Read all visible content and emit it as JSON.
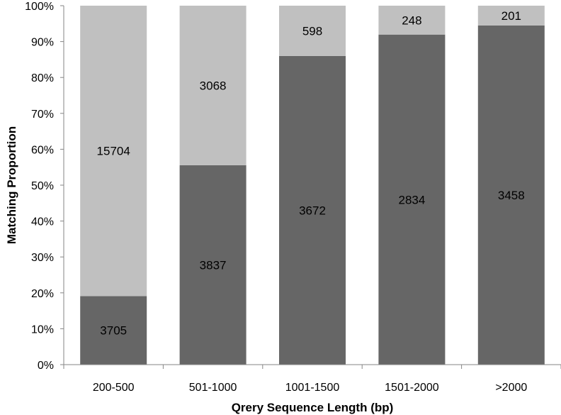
{
  "chart_data": {
    "type": "bar",
    "stacked": true,
    "normalized": true,
    "title": "",
    "xlabel": "Qrery Sequence Length (bp)",
    "ylabel": "Matching Proportion",
    "categories": [
      "200-500",
      "501-1000",
      "1001-1500",
      "1501-2000",
      ">2000"
    ],
    "series": [
      {
        "values": [
          3705,
          3837,
          3672,
          2834,
          3458
        ],
        "color": "#666666"
      },
      {
        "values": [
          15704,
          3068,
          598,
          248,
          201
        ],
        "color": "#c0c0c0"
      }
    ],
    "ylim": [
      0,
      100
    ],
    "yticks": [
      "0%",
      "10%",
      "20%",
      "30%",
      "40%",
      "50%",
      "60%",
      "70%",
      "80%",
      "90%",
      "100%"
    ],
    "grid": false,
    "legend": "none"
  }
}
